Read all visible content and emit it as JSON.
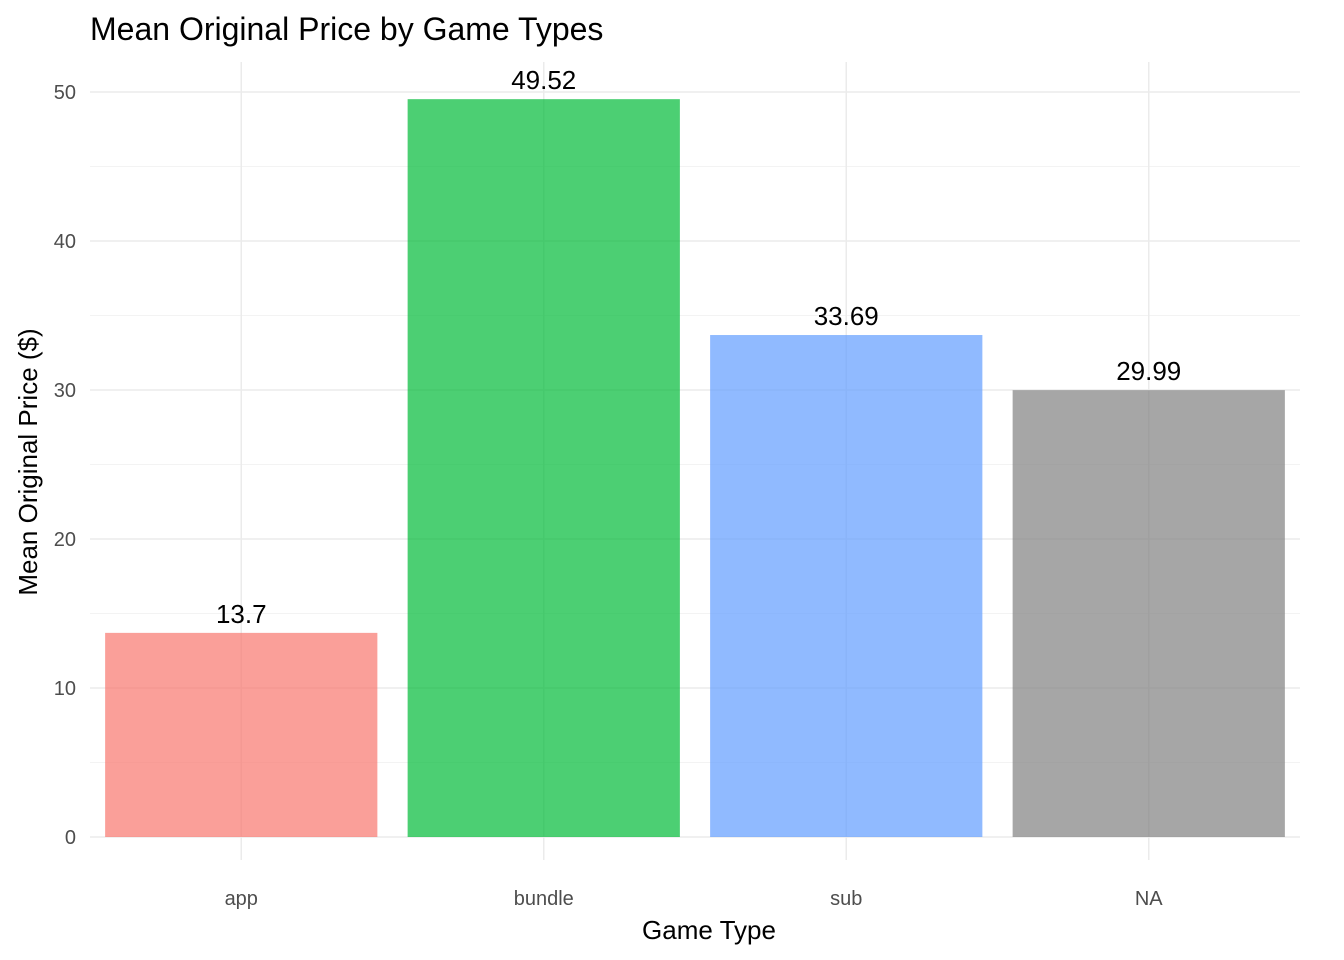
{
  "chart_data": {
    "type": "bar",
    "title": "Mean Original Price by Game Types",
    "xlabel": "Game Type",
    "ylabel": "Mean Original Price ($)",
    "categories": [
      "app",
      "bundle",
      "sub",
      "NA"
    ],
    "values": [
      13.7,
      49.52,
      33.69,
      29.99
    ],
    "data_labels": [
      "13.7",
      "49.52",
      "33.69",
      "29.99"
    ],
    "colors": [
      "#f8766d",
      "#00ba38",
      "#619cff",
      "#808080"
    ],
    "bar_opacity": 0.7,
    "ylim": [
      0,
      52
    ],
    "yticks": [
      0,
      10,
      20,
      30,
      40,
      50
    ],
    "grid": true,
    "legend": "none"
  }
}
